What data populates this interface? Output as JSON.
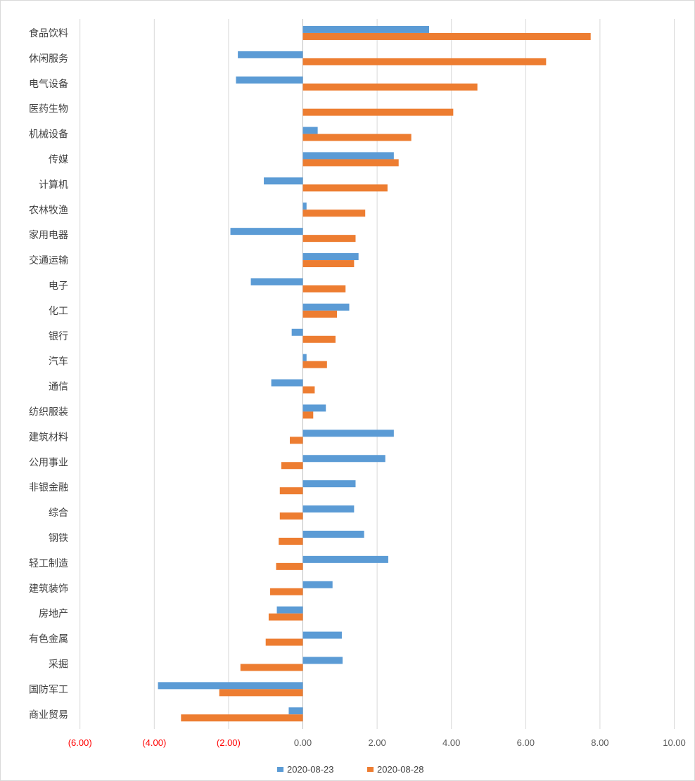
{
  "chart_data": {
    "type": "bar",
    "orientation": "horizontal",
    "categories": [
      "食品饮料",
      "休闲服务",
      "电气设备",
      "医药生物",
      "机械设备",
      "传媒",
      "计算机",
      "农林牧渔",
      "家用电器",
      "交通运输",
      "电子",
      "化工",
      "银行",
      "汽车",
      "通信",
      "纺织服装",
      "建筑材料",
      "公用事业",
      "非银金融",
      "综合",
      "钢铁",
      "轻工制造",
      "建筑装饰",
      "房地产",
      "有色金属",
      "采掘",
      "国防军工",
      "商业贸易"
    ],
    "series": [
      {
        "name": "2020-08-23",
        "color": "#5b9bd5",
        "values": [
          3.4,
          -1.75,
          -1.8,
          0.0,
          0.4,
          2.45,
          -1.05,
          0.1,
          -1.95,
          1.5,
          -1.4,
          1.25,
          -0.3,
          0.1,
          -0.85,
          0.62,
          2.45,
          2.22,
          1.42,
          1.38,
          1.65,
          2.3,
          0.8,
          -0.7,
          1.05,
          1.07,
          -3.9,
          -0.38
        ]
      },
      {
        "name": "2020-08-28",
        "color": "#ed7d31",
        "values": [
          7.75,
          6.55,
          4.7,
          4.05,
          2.92,
          2.58,
          2.28,
          1.68,
          1.42,
          1.38,
          1.15,
          0.92,
          0.88,
          0.65,
          0.32,
          0.28,
          -0.35,
          -0.58,
          -0.62,
          -0.62,
          -0.65,
          -0.72,
          -0.88,
          -0.92,
          -1.0,
          -1.68,
          -2.25,
          -3.28
        ]
      }
    ],
    "x_ticks": [
      -6,
      -4,
      -2,
      0,
      2,
      4,
      6,
      8,
      10
    ],
    "x_tick_labels": [
      "(6.00)",
      "(4.00)",
      "(2.00)",
      "0.00",
      "2.00",
      "4.00",
      "6.00",
      "8.00",
      "10.00"
    ],
    "negative_tick_color": "#ff0000",
    "positive_tick_color": "#595959",
    "xlim": [
      -6,
      10
    ],
    "grid": "vertical",
    "legend_position": "bottom"
  }
}
